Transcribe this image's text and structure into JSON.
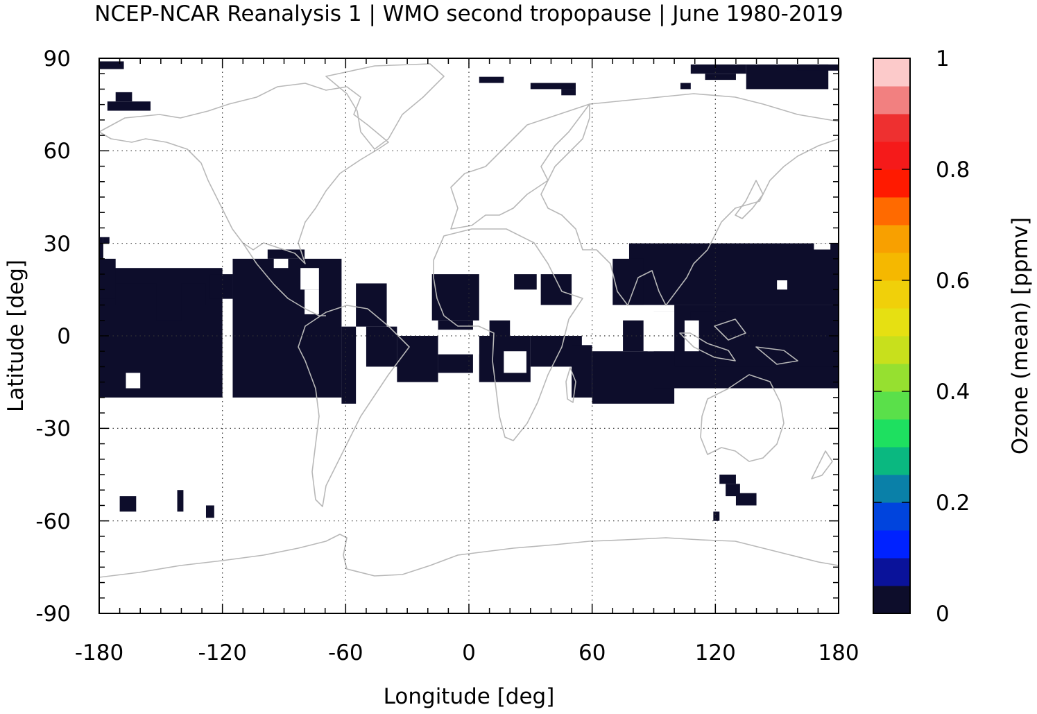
{
  "chart_data": {
    "type": "heatmap",
    "title": "NCEP-NCAR Reanalysis 1 | WMO second tropopause | June 1980-2019",
    "xlabel": "Longitude [deg]",
    "ylabel": "Latitude [deg]",
    "xlim": [
      -180,
      180
    ],
    "ylim": [
      -90,
      90
    ],
    "xticks": [
      "-180",
      "-120",
      "-60",
      "0",
      "60",
      "120",
      "180"
    ],
    "yticks": [
      "90",
      "60",
      "30",
      "0",
      "-30",
      "-60",
      "-90"
    ],
    "grid": true,
    "grid_step_deg": 60,
    "grid_style": "dotted",
    "background_map": "coastlines",
    "coastline_color": "#b8b8b8",
    "colorbar": {
      "label": "Ozone (mean) [ppmv]",
      "range": [
        0,
        1
      ],
      "tick_labels": [
        "1",
        "0.8",
        "0.6",
        "0.4",
        "0.2",
        "0"
      ],
      "colors": [
        "#0d0d2b",
        "#0a129a",
        "#0022ff",
        "#0044dd",
        "#0a80a8",
        "#0ab880",
        "#1ee060",
        "#5ae04a",
        "#96e030",
        "#c8e01c",
        "#e6e012",
        "#f0d00a",
        "#f5b800",
        "#f8a000",
        "#ff6a00",
        "#ff1a00",
        "#f51a1a",
        "#ee3030",
        "#f28080",
        "#fccaca"
      ]
    },
    "value_note": "all shaded cells are in the lowest colour bin (0 to 0.05 ppmv); unshaded cells have no second tropopause",
    "cell_value": 0.02,
    "cell_color": "#0d0d2b",
    "cells_lon_lat": [
      {
        "lon": [
          -180,
          -168
        ],
        "lat": [
          86.5,
          89
        ]
      },
      {
        "lon": [
          -172,
          -164
        ],
        "lat": [
          76,
          79
        ]
      },
      {
        "lon": [
          -176,
          -155
        ],
        "lat": [
          73,
          76
        ]
      },
      {
        "lon": [
          -178,
          -175
        ],
        "lat": [
          30,
          32
        ]
      },
      {
        "lon": [
          -180,
          -178
        ],
        "lat": [
          22,
          32
        ]
      },
      {
        "lon": [
          -180,
          -120
        ],
        "lat": [
          -20,
          22
        ]
      },
      {
        "lon": [
          -180,
          -172
        ],
        "lat": [
          12,
          25
        ]
      },
      {
        "lon": [
          -172,
          -152
        ],
        "lat": [
          10,
          17
        ]
      },
      {
        "lon": [
          -152,
          -140
        ],
        "lat": [
          5,
          10
        ]
      },
      {
        "lon": [
          -140,
          -128
        ],
        "lat": [
          10,
          17
        ]
      },
      {
        "lon": [
          -126,
          -115
        ],
        "lat": [
          12,
          20
        ]
      },
      {
        "lon": [
          -115,
          -62
        ],
        "lat": [
          -20,
          25
        ]
      },
      {
        "lon": [
          -98,
          -80
        ],
        "lat": [
          25,
          28
        ]
      },
      {
        "lon": [
          -62,
          -55
        ],
        "lat": [
          -22,
          3
        ]
      },
      {
        "lon": [
          -55,
          -40
        ],
        "lat": [
          3,
          17
        ]
      },
      {
        "lon": [
          -50,
          -35
        ],
        "lat": [
          -10,
          3
        ]
      },
      {
        "lon": [
          -35,
          -15
        ],
        "lat": [
          -15,
          0
        ]
      },
      {
        "lon": [
          -18,
          5
        ],
        "lat": [
          5,
          20
        ]
      },
      {
        "lon": [
          -15,
          2
        ],
        "lat": [
          -12,
          5
        ]
      },
      {
        "lon": [
          5,
          30
        ],
        "lat": [
          -15,
          0
        ]
      },
      {
        "lon": [
          10,
          20
        ],
        "lat": [
          0,
          5
        ]
      },
      {
        "lon": [
          30,
          55
        ],
        "lat": [
          -10,
          0
        ]
      },
      {
        "lon": [
          35,
          50
        ],
        "lat": [
          10,
          20
        ]
      },
      {
        "lon": [
          22,
          33
        ],
        "lat": [
          15,
          20
        ]
      },
      {
        "lon": [
          50,
          60
        ],
        "lat": [
          -20,
          -3
        ]
      },
      {
        "lon": [
          60,
          100
        ],
        "lat": [
          -22,
          -5
        ]
      },
      {
        "lon": [
          75,
          85
        ],
        "lat": [
          -5,
          5
        ]
      },
      {
        "lon": [
          78,
          180
        ],
        "lat": [
          10,
          30
        ]
      },
      {
        "lon": [
          70,
          85
        ],
        "lat": [
          10,
          25
        ]
      },
      {
        "lon": [
          90,
          180
        ],
        "lat": [
          -17,
          8
        ]
      },
      {
        "lon": [
          100,
          180
        ],
        "lat": [
          -10,
          10
        ]
      },
      {
        "lon": [
          108,
          125
        ],
        "lat": [
          -5,
          8
        ]
      },
      {
        "lon": [
          122,
          130
        ],
        "lat": [
          -48,
          -45
        ]
      },
      {
        "lon": [
          125,
          132
        ],
        "lat": [
          -52,
          -48
        ]
      },
      {
        "lon": [
          130,
          140
        ],
        "lat": [
          -55,
          -51
        ]
      },
      {
        "lon": [
          119,
          122
        ],
        "lat": [
          -60,
          -57
        ]
      },
      {
        "lon": [
          5,
          17
        ],
        "lat": [
          82,
          84
        ]
      },
      {
        "lon": [
          30,
          52
        ],
        "lat": [
          80,
          82
        ]
      },
      {
        "lon": [
          45,
          52
        ],
        "lat": [
          78,
          80
        ]
      },
      {
        "lon": [
          108,
          135
        ],
        "lat": [
          85,
          88
        ]
      },
      {
        "lon": [
          115,
          130
        ],
        "lat": [
          83,
          85
        ]
      },
      {
        "lon": [
          135,
          175
        ],
        "lat": [
          80,
          88
        ]
      },
      {
        "lon": [
          160,
          180
        ],
        "lat": [
          86,
          88
        ]
      },
      {
        "lon": [
          103,
          108
        ],
        "lat": [
          80,
          82
        ]
      },
      {
        "lon": [
          -170,
          -162
        ],
        "lat": [
          -57,
          -52
        ]
      },
      {
        "lon": [
          -142,
          -139
        ],
        "lat": [
          -57,
          -50
        ]
      },
      {
        "lon": [
          -128,
          -124
        ],
        "lat": [
          -59,
          -55
        ]
      }
    ],
    "white_holes_lon_lat": [
      {
        "lon": [
          -167,
          -160
        ],
        "lat": [
          -17,
          -12
        ]
      },
      {
        "lon": [
          -82,
          -73
        ],
        "lat": [
          15,
          22
        ]
      },
      {
        "lon": [
          -95,
          -88
        ],
        "lat": [
          22,
          25
        ]
      },
      {
        "lon": [
          -80,
          -73
        ],
        "lat": [
          7,
          15
        ]
      },
      {
        "lon": [
          -15,
          5
        ],
        "lat": [
          -6,
          2
        ]
      },
      {
        "lon": [
          17,
          28
        ],
        "lat": [
          -12,
          -5
        ]
      },
      {
        "lon": [
          87,
          100
        ],
        "lat": [
          -5,
          8
        ]
      },
      {
        "lon": [
          105,
          112
        ],
        "lat": [
          -5,
          5
        ]
      },
      {
        "lon": [
          150,
          155
        ],
        "lat": [
          15,
          18
        ]
      },
      {
        "lon": [
          168,
          176
        ],
        "lat": [
          28,
          30
        ]
      }
    ]
  }
}
